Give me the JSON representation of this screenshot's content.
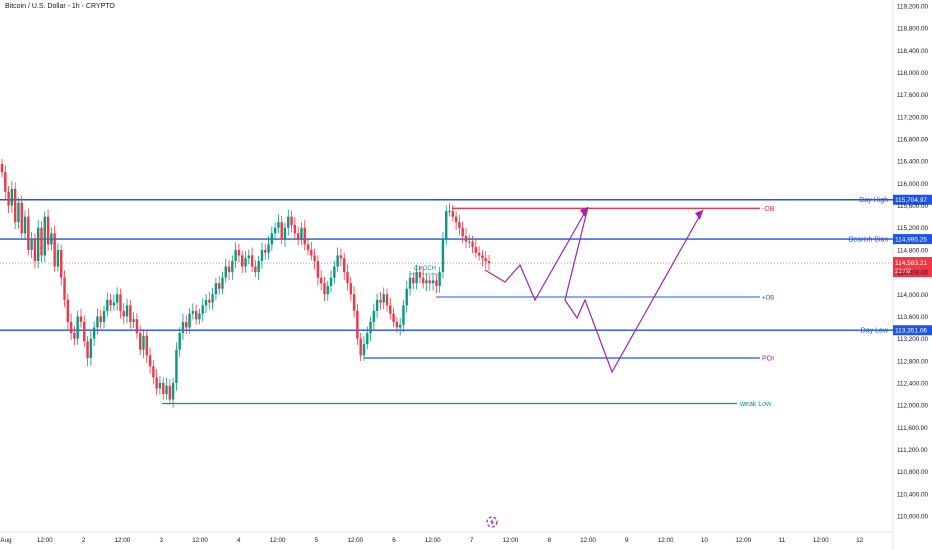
{
  "header": {
    "title": "Bitcoin / U.S. Dollar - 1h - CRYPTO"
  },
  "colors": {
    "bull": "#089981",
    "bear": "#f23645",
    "blue_line": "#1e53e5",
    "red_line": "#f23645",
    "green_line": "#089981",
    "purple": "#9c27b0",
    "axis_text": "#131722"
  },
  "chart_data": {
    "type": "candlestick",
    "title": "Bitcoin / U.S. Dollar - 1h - CRYPTO",
    "y_range": [
      109800,
      119400
    ],
    "x_tick_labels": [
      "Aug",
      "12:00",
      "2",
      "12:00",
      "3",
      "12:00",
      "4",
      "12:00",
      "5",
      "12:00",
      "6",
      "12:00",
      "7",
      "12:00",
      "8",
      "12:00",
      "9",
      "12:00",
      "10",
      "12:00",
      "11",
      "12:00",
      "12"
    ],
    "y_tick_labels": [
      "119,200.00",
      "118,800.00",
      "118,400.00",
      "118,000.00",
      "117,600.00",
      "117,200.00",
      "116,800.00",
      "116,400.00",
      "116,000.00",
      "115,600.00",
      "115,200.00",
      "114,800.00",
      "114,400.00",
      "114,000.00",
      "113,600.00",
      "113,200.00",
      "112,800.00",
      "112,400.00",
      "112,000.00",
      "111,600.00",
      "111,200.00",
      "110,800.00",
      "110,400.00",
      "110,000.00"
    ],
    "levels": [
      {
        "label": "Day High",
        "price": 115704.97,
        "price_label": "115,704.97"
      },
      {
        "label": "Bearish Bias",
        "price": 114995.25,
        "price_label": "114,995.25"
      },
      {
        "label": "Day Low",
        "price": 113351.06,
        "price_label": "113,351.06"
      }
    ],
    "current_price": {
      "price": 114563.21,
      "price_label": "114,563.21",
      "countdown": "23:02"
    },
    "zones": [
      {
        "label": "-OB",
        "price": 115550
      },
      {
        "label": "+OB",
        "price": 113950
      },
      {
        "label": "POI",
        "price": 112850
      },
      {
        "label": "weak Low",
        "price": 112030
      }
    ],
    "annotations": [
      {
        "label": "CHOCH",
        "price": 114440
      }
    ],
    "candle_closes": [
      116200,
      115850,
      115600,
      115900,
      115300,
      115650,
      115100,
      115400,
      114800,
      115000,
      114600,
      115200,
      114700,
      115400,
      114900,
      115100,
      114500,
      114800,
      114300,
      113900,
      113500,
      113300,
      113200,
      113600,
      113500,
      113150,
      112850,
      113200,
      113400,
      113600,
      113500,
      113700,
      113900,
      113800,
      113850,
      114000,
      113700,
      113600,
      113800,
      113500,
      113550,
      113300,
      113000,
      113250,
      112900,
      112700,
      112500,
      112300,
      112400,
      112200,
      112350,
      112100,
      112400,
      113000,
      113300,
      113500,
      113400,
      113650,
      113700,
      113550,
      113650,
      113800,
      113900,
      113850,
      114000,
      114200,
      114100,
      114300,
      114500,
      114400,
      114600,
      114800,
      114700,
      114500,
      114650,
      114700,
      114500,
      114400,
      114600,
      114800,
      114750,
      114900,
      115100,
      115200,
      115300,
      115000,
      115200,
      115400,
      115250,
      115100,
      115000,
      115200,
      114900,
      114800,
      114700,
      114600,
      114300,
      114200,
      114000,
      114150,
      114300,
      114500,
      114700,
      114650,
      114400,
      114200,
      114000,
      113700,
      113200,
      112900,
      113100,
      113300,
      113500,
      113700,
      113900,
      113850,
      114000,
      113800,
      113650,
      113500,
      113400,
      113450,
      113800,
      114100,
      114300,
      114200,
      114400,
      114300,
      114200,
      114250,
      114200,
      114250,
      114150,
      114400,
      115000,
      115500,
      115500,
      115400,
      115300,
      115200,
      115050,
      114950,
      114950,
      114850,
      114750,
      114700,
      114650,
      114600,
      114563
    ],
    "projection_path": [
      [
        485,
        270
      ],
      [
        505,
        282
      ],
      [
        520,
        265
      ],
      [
        535,
        300
      ],
      [
        588,
        207
      ],
      [
        565,
        300
      ],
      [
        577,
        318
      ],
      [
        585,
        300
      ],
      [
        612,
        372
      ],
      [
        703,
        210
      ]
    ]
  }
}
